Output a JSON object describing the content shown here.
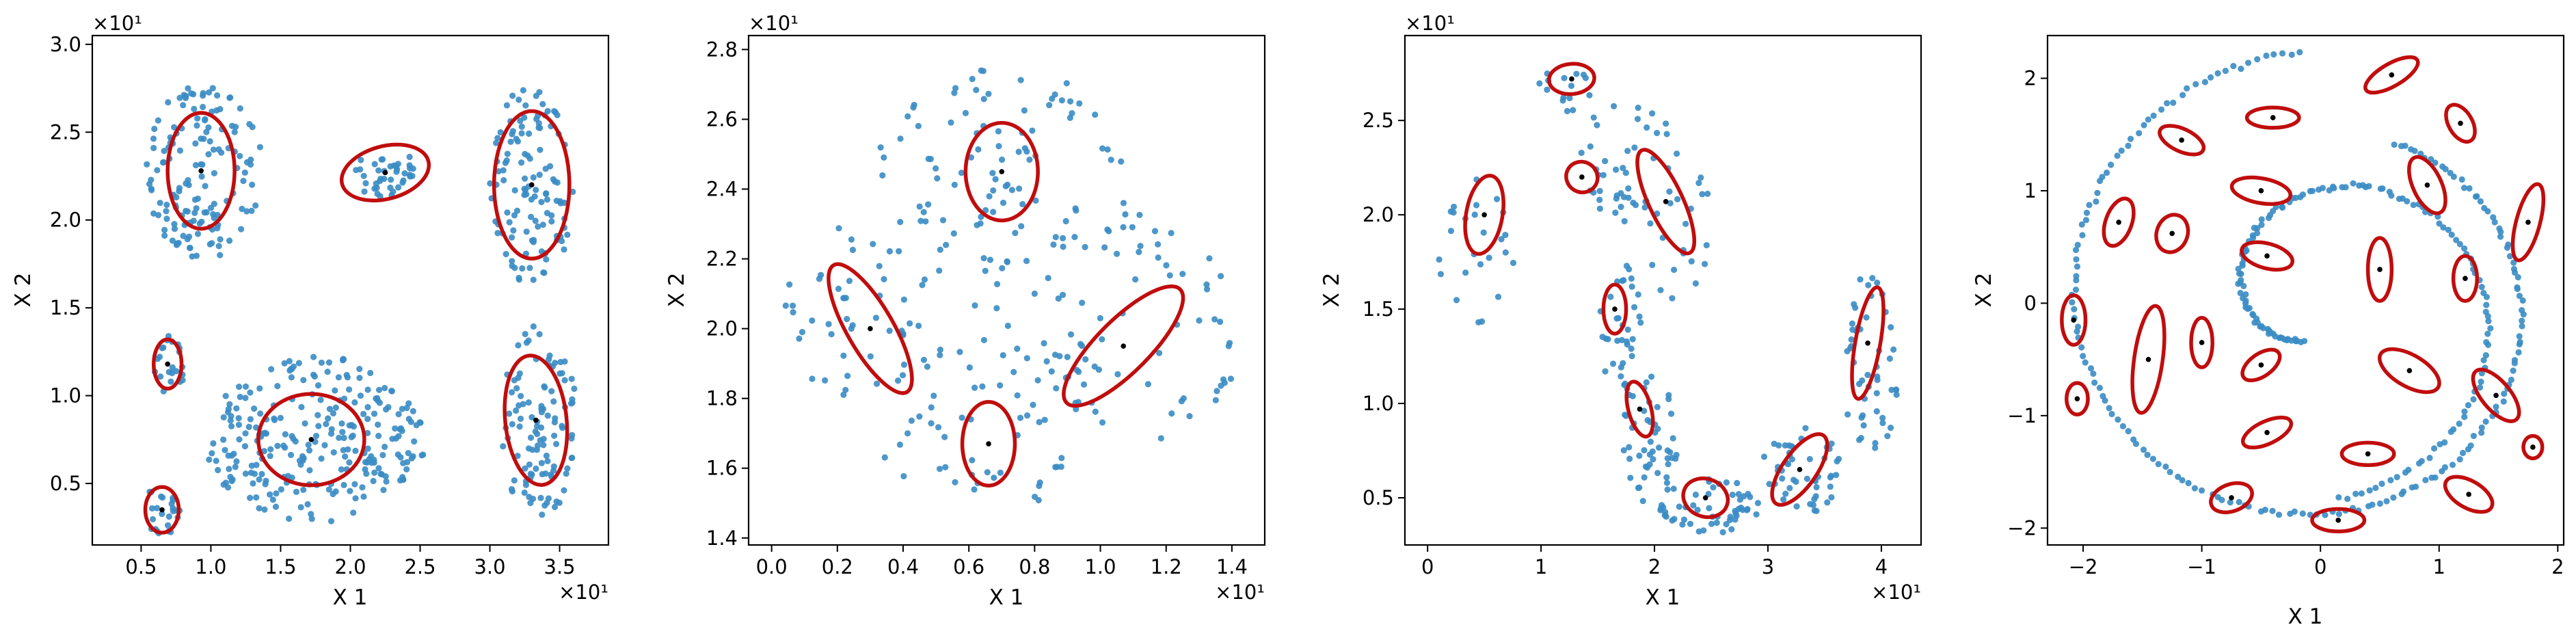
{
  "chart_data": [
    {
      "type": "scatter",
      "title": "",
      "xlabel": "X 1",
      "ylabel": "X 2",
      "x_offset_label": "×10¹",
      "y_offset_label": "×10¹",
      "xlim": [
        0.15,
        3.85
      ],
      "ylim": [
        0.15,
        3.05
      ],
      "xticks": [
        0.5,
        1.0,
        1.5,
        2.0,
        2.5,
        3.0,
        3.5
      ],
      "xtick_labels": [
        "0.5",
        "1.0",
        "1.5",
        "2.0",
        "2.5",
        "3.0",
        "3.5"
      ],
      "yticks": [
        0.5,
        1.0,
        1.5,
        2.0,
        2.5,
        3.0
      ],
      "ytick_labels": [
        "0.5",
        "1.0",
        "1.5",
        "2.0",
        "2.5",
        "3.0"
      ],
      "point_color": "#3a8cc4",
      "ellipse_color": "#c00d0d",
      "clusters": [
        {
          "cx": 0.95,
          "cy": 2.28,
          "rx": 0.42,
          "ry": 0.5,
          "n": 150
        },
        {
          "cx": 2.25,
          "cy": 2.27,
          "rx": 0.22,
          "ry": 0.15,
          "n": 40
        },
        {
          "cx": 3.3,
          "cy": 2.2,
          "rx": 0.3,
          "ry": 0.58,
          "n": 120
        },
        {
          "cx": 0.7,
          "cy": 1.18,
          "rx": 0.12,
          "ry": 0.18,
          "n": 22
        },
        {
          "cx": 1.75,
          "cy": 0.75,
          "rx": 0.8,
          "ry": 0.48,
          "n": 260
        },
        {
          "cx": 3.35,
          "cy": 0.85,
          "rx": 0.28,
          "ry": 0.55,
          "n": 110
        },
        {
          "cx": 0.65,
          "cy": 0.35,
          "rx": 0.14,
          "ry": 0.15,
          "n": 24
        }
      ],
      "ellipses": [
        {
          "cx": 0.93,
          "cy": 2.28,
          "rx": 0.24,
          "ry": 0.33,
          "angle": 0
        },
        {
          "cx": 2.25,
          "cy": 2.27,
          "rx": 0.32,
          "ry": 0.15,
          "angle": -15
        },
        {
          "cx": 3.3,
          "cy": 2.2,
          "rx": 0.27,
          "ry": 0.42,
          "angle": 0
        },
        {
          "cx": 0.69,
          "cy": 1.18,
          "rx": 0.1,
          "ry": 0.14,
          "angle": 0
        },
        {
          "cx": 1.72,
          "cy": 0.75,
          "rx": 0.38,
          "ry": 0.26,
          "angle": 0
        },
        {
          "cx": 3.33,
          "cy": 0.86,
          "rx": 0.22,
          "ry": 0.37,
          "angle": -6
        },
        {
          "cx": 0.65,
          "cy": 0.35,
          "rx": 0.12,
          "ry": 0.13,
          "angle": 0
        }
      ]
    },
    {
      "type": "scatter",
      "title": "",
      "xlabel": "X 1",
      "ylabel": "X 2",
      "x_offset_label": "×10¹",
      "y_offset_label": "×10¹",
      "xlim": [
        -0.07,
        1.5
      ],
      "ylim": [
        1.38,
        2.84
      ],
      "xticks": [
        0.0,
        0.2,
        0.4,
        0.6,
        0.8,
        1.0,
        1.2,
        1.4
      ],
      "xtick_labels": [
        "0.0",
        "0.2",
        "0.4",
        "0.6",
        "0.8",
        "1.0",
        "1.2",
        "1.4"
      ],
      "yticks": [
        1.4,
        1.6,
        1.8,
        2.0,
        2.2,
        2.4,
        2.6,
        2.8
      ],
      "ytick_labels": [
        "1.4",
        "1.6",
        "1.8",
        "2.0",
        "2.2",
        "2.4",
        "2.6",
        "2.8"
      ],
      "point_color": "#3a8cc4",
      "ellipse_color": "#c00d0d",
      "clusters": [
        {
          "cx": 0.7,
          "cy": 2.4,
          "rx": 0.4,
          "ry": 0.35,
          "n": 110
        },
        {
          "cx": 0.25,
          "cy": 2.05,
          "rx": 0.22,
          "ry": 0.25,
          "n": 45
        },
        {
          "cx": 1.15,
          "cy": 2.0,
          "rx": 0.28,
          "ry": 0.35,
          "n": 55
        },
        {
          "cx": 0.65,
          "cy": 1.75,
          "rx": 0.35,
          "ry": 0.28,
          "n": 70
        }
      ],
      "ellipses": [
        {
          "cx": 0.7,
          "cy": 2.45,
          "rx": 0.11,
          "ry": 0.14,
          "angle": 0
        },
        {
          "cx": 0.3,
          "cy": 2.0,
          "rx": 0.07,
          "ry": 0.21,
          "angle": -30
        },
        {
          "cx": 1.07,
          "cy": 1.95,
          "rx": 0.08,
          "ry": 0.23,
          "angle": 45
        },
        {
          "cx": 0.66,
          "cy": 1.67,
          "rx": 0.08,
          "ry": 0.12,
          "angle": 0
        }
      ]
    },
    {
      "type": "scatter",
      "title": "",
      "xlabel": "X 1",
      "ylabel": "X 2",
      "x_offset_label": "×10¹",
      "y_offset_label": "×10¹",
      "xlim": [
        -0.2,
        4.35
      ],
      "ylim": [
        0.25,
        2.95
      ],
      "xticks": [
        0,
        1,
        2,
        3,
        4
      ],
      "xtick_labels": [
        "0",
        "1",
        "2",
        "3",
        "4"
      ],
      "yticks": [
        0.5,
        1.0,
        1.5,
        2.0,
        2.5
      ],
      "ytick_labels": [
        "0.5",
        "1.0",
        "1.5",
        "2.0",
        "2.5"
      ],
      "point_color": "#3a8cc4",
      "ellipse_color": "#c00d0d",
      "clusters": [
        {
          "cx": 1.2,
          "cy": 2.65,
          "rx": 0.25,
          "ry": 0.15,
          "n": 15
        },
        {
          "cx": 0.45,
          "cy": 1.8,
          "rx": 0.35,
          "ry": 0.4,
          "n": 25
        },
        {
          "cx": 1.8,
          "cy": 2.35,
          "rx": 0.45,
          "ry": 0.3,
          "n": 25
        },
        {
          "cx": 2.2,
          "cy": 1.95,
          "rx": 0.3,
          "ry": 0.4,
          "n": 25
        },
        {
          "cx": 1.7,
          "cy": 1.4,
          "rx": 0.2,
          "ry": 0.35,
          "n": 35
        },
        {
          "cx": 1.95,
          "cy": 0.8,
          "rx": 0.25,
          "ry": 0.35,
          "n": 50
        },
        {
          "cx": 2.5,
          "cy": 0.45,
          "rx": 0.45,
          "ry": 0.15,
          "n": 55
        },
        {
          "cx": 3.3,
          "cy": 0.65,
          "rx": 0.35,
          "ry": 0.25,
          "n": 50
        },
        {
          "cx": 3.9,
          "cy": 1.2,
          "rx": 0.25,
          "ry": 0.5,
          "n": 50
        },
        {
          "cx": 1.6,
          "cy": 2.1,
          "rx": 0.2,
          "ry": 0.2,
          "n": 15
        }
      ],
      "ellipses": [
        {
          "cx": 1.27,
          "cy": 2.72,
          "rx": 0.2,
          "ry": 0.08,
          "angle": -5
        },
        {
          "cx": 0.5,
          "cy": 2.0,
          "rx": 0.16,
          "ry": 0.21,
          "angle": 10
        },
        {
          "cx": 1.36,
          "cy": 2.2,
          "rx": 0.14,
          "ry": 0.08,
          "angle": 30
        },
        {
          "cx": 2.1,
          "cy": 2.07,
          "rx": 0.15,
          "ry": 0.3,
          "angle": -25
        },
        {
          "cx": 1.65,
          "cy": 1.5,
          "rx": 0.1,
          "ry": 0.13,
          "angle": 0
        },
        {
          "cx": 1.87,
          "cy": 0.97,
          "rx": 0.1,
          "ry": 0.15,
          "angle": -15
        },
        {
          "cx": 2.45,
          "cy": 0.5,
          "rx": 0.2,
          "ry": 0.1,
          "angle": 20
        },
        {
          "cx": 3.28,
          "cy": 0.65,
          "rx": 0.15,
          "ry": 0.22,
          "angle": 35
        },
        {
          "cx": 3.88,
          "cy": 1.32,
          "rx": 0.11,
          "ry": 0.3,
          "angle": 10
        }
      ]
    },
    {
      "type": "scatter",
      "title": "",
      "xlabel": "X 1",
      "ylabel": "X 2",
      "xlim": [
        -2.3,
        2.05
      ],
      "ylim": [
        -2.15,
        2.38
      ],
      "xticks": [
        -2,
        -1,
        0,
        1,
        2
      ],
      "xtick_labels": [
        "−2",
        "−1",
        "0",
        "1",
        "2"
      ],
      "yticks": [
        -2,
        -1,
        0,
        1,
        2
      ],
      "ytick_labels": [
        "−2",
        "−1",
        "0",
        "1",
        "2"
      ],
      "point_color": "#3a8cc4",
      "ellipse_color": "#c00d0d",
      "spiral_outer": {
        "a0": 1.65,
        "turn_rad": 5.8,
        "r_start": 2.25,
        "r_end": 1.55,
        "n": 180
      },
      "spiral_inner": {
        "a0": 4.8,
        "turn_rad": 5.8,
        "r_start": 1.75,
        "r_end": 0.35,
        "n": 150
      },
      "ellipses": [
        {
          "cx": 0.6,
          "cy": 2.03,
          "rx": 0.25,
          "ry": 0.1,
          "angle": -30
        },
        {
          "cx": -0.4,
          "cy": 1.65,
          "rx": 0.22,
          "ry": 0.09,
          "angle": 0
        },
        {
          "cx": 1.18,
          "cy": 1.6,
          "rx": 0.1,
          "ry": 0.18,
          "angle": -30
        },
        {
          "cx": -1.17,
          "cy": 1.45,
          "rx": 0.2,
          "ry": 0.1,
          "angle": 25
        },
        {
          "cx": -0.5,
          "cy": 1.0,
          "rx": 0.25,
          "ry": 0.11,
          "angle": 10
        },
        {
          "cx": 0.9,
          "cy": 1.05,
          "rx": 0.12,
          "ry": 0.27,
          "angle": -25
        },
        {
          "cx": -1.7,
          "cy": 0.72,
          "rx": 0.11,
          "ry": 0.22,
          "angle": 20
        },
        {
          "cx": -1.25,
          "cy": 0.62,
          "rx": 0.13,
          "ry": 0.17,
          "angle": 20
        },
        {
          "cx": 1.75,
          "cy": 0.72,
          "rx": 0.1,
          "ry": 0.35,
          "angle": 15
        },
        {
          "cx": -0.45,
          "cy": 0.42,
          "rx": 0.22,
          "ry": 0.11,
          "angle": 15
        },
        {
          "cx": 0.5,
          "cy": 0.3,
          "rx": 0.1,
          "ry": 0.28,
          "angle": 0
        },
        {
          "cx": 1.22,
          "cy": 0.22,
          "rx": 0.1,
          "ry": 0.2,
          "angle": 0
        },
        {
          "cx": -2.08,
          "cy": -0.15,
          "rx": 0.1,
          "ry": 0.22,
          "angle": 0
        },
        {
          "cx": -1.0,
          "cy": -0.35,
          "rx": 0.09,
          "ry": 0.22,
          "angle": 0
        },
        {
          "cx": -1.45,
          "cy": -0.5,
          "rx": 0.12,
          "ry": 0.48,
          "angle": 8
        },
        {
          "cx": -0.5,
          "cy": -0.55,
          "rx": 0.18,
          "ry": 0.1,
          "angle": -35
        },
        {
          "cx": 0.75,
          "cy": -0.6,
          "rx": 0.28,
          "ry": 0.14,
          "angle": 30
        },
        {
          "cx": 1.48,
          "cy": -0.82,
          "rx": 0.12,
          "ry": 0.28,
          "angle": -40
        },
        {
          "cx": -2.05,
          "cy": -0.85,
          "rx": 0.09,
          "ry": 0.14,
          "angle": 0
        },
        {
          "cx": -0.45,
          "cy": -1.15,
          "rx": 0.22,
          "ry": 0.1,
          "angle": -25
        },
        {
          "cx": 0.4,
          "cy": -1.34,
          "rx": 0.22,
          "ry": 0.1,
          "angle": 0
        },
        {
          "cx": 1.79,
          "cy": -1.28,
          "rx": 0.08,
          "ry": 0.1,
          "angle": 0
        },
        {
          "cx": -0.75,
          "cy": -1.73,
          "rx": 0.18,
          "ry": 0.12,
          "angle": -20
        },
        {
          "cx": 1.25,
          "cy": -1.7,
          "rx": 0.22,
          "ry": 0.12,
          "angle": 30
        },
        {
          "cx": 0.15,
          "cy": -1.93,
          "rx": 0.22,
          "ry": 0.1,
          "angle": 0
        }
      ]
    }
  ]
}
